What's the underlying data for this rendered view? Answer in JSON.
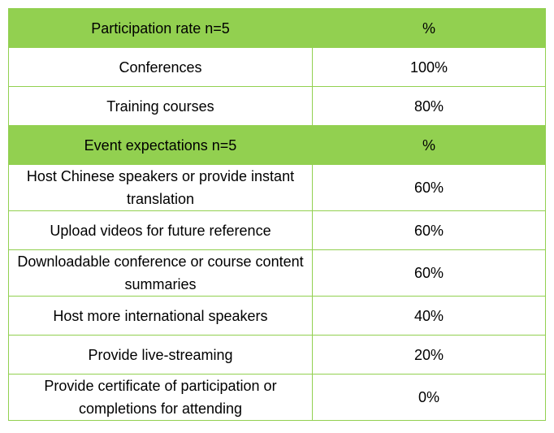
{
  "participation": {
    "header": {
      "label": "Participation rate n=5",
      "value": "%"
    },
    "rows": [
      {
        "label": "Conferences",
        "value": "100%"
      },
      {
        "label": "Training courses",
        "value": "80%"
      }
    ]
  },
  "expectations": {
    "header": {
      "label": "Event expectations n=5",
      "value": "%"
    },
    "rows": [
      {
        "label": "Host Chinese speakers or provide instant translation",
        "value": "60%"
      },
      {
        "label": "Upload videos for future reference",
        "value": "60%"
      },
      {
        "label": "Downloadable conference or course content summaries",
        "value": "60%"
      },
      {
        "label": "Host more international speakers",
        "value": "40%"
      },
      {
        "label": "Provide live-streaming",
        "value": "20%"
      },
      {
        "label": "Provide certificate of participation or completions for attending",
        "value": "0%"
      }
    ]
  },
  "colors": {
    "header_fill": "#92d050",
    "border": "#92d050"
  }
}
